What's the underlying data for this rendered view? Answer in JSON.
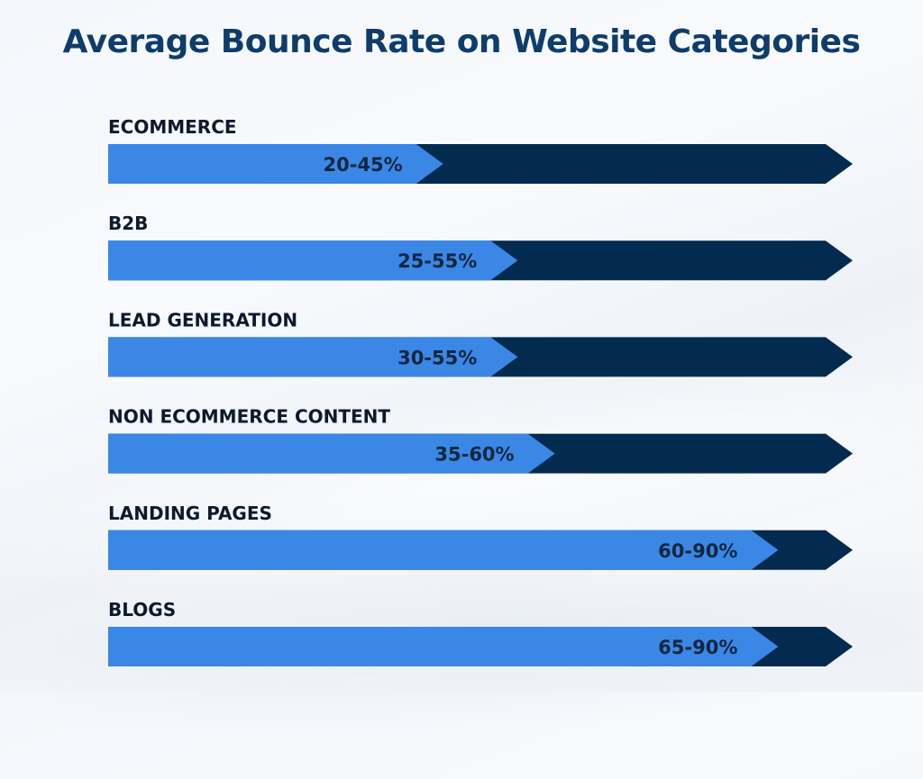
{
  "title": "Average Bounce Rate on Website Categories",
  "colors": {
    "range_fill": "#3a87e6",
    "track_fill": "#032a4f",
    "title": "#0e3d6b",
    "label": "#0b1a2e"
  },
  "chart_data": {
    "type": "bar",
    "orientation": "horizontal",
    "title": "Average Bounce Rate on Website Categories",
    "xlim": [
      0,
      100
    ],
    "grid": false,
    "unit": "%",
    "categories": [
      "ECOMMERCE",
      "B2B",
      "LEAD GENERATION",
      "NON ECOMMERCE CONTENT",
      "LANDING PAGES",
      "BLOGS"
    ],
    "series": [
      {
        "low": 20,
        "high": 45,
        "label": "20-45%"
      },
      {
        "low": 25,
        "high": 55,
        "label": "25-55%"
      },
      {
        "low": 30,
        "high": 55,
        "label": "30-55%"
      },
      {
        "low": 35,
        "high": 60,
        "label": "35-60%"
      },
      {
        "low": 60,
        "high": 90,
        "label": "60-90%"
      },
      {
        "low": 65,
        "high": 90,
        "label": "65-90%"
      }
    ]
  }
}
